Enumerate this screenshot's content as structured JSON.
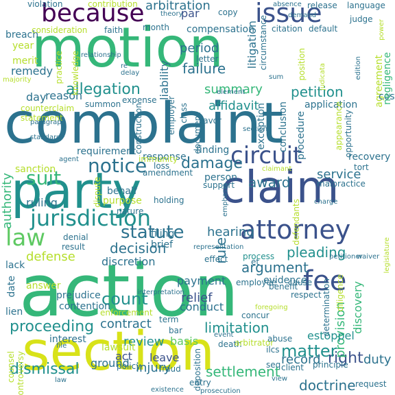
{
  "palette": {
    "dark_purple": "#440154",
    "deep_blue": "#3b528b",
    "teal": "#21908d",
    "blue_teal": "#2c728e",
    "green": "#35b779",
    "light_green": "#5ec962",
    "yellow_green": "#b5de2b",
    "yellow": "#d8e219"
  },
  "words": [
    {
      "text": "action",
      "c": "green"
    },
    {
      "text": "complaint",
      "c": "blue_teal"
    },
    {
      "text": "section",
      "c": "yellow"
    },
    {
      "text": "motion",
      "c": "green"
    },
    {
      "text": "party",
      "c": "teal"
    },
    {
      "text": "claim",
      "c": "deep_blue"
    },
    {
      "text": "because",
      "c": "dark_purple"
    },
    {
      "text": "issue",
      "c": "deep_blue"
    },
    {
      "text": "attorney",
      "c": "deep_blue"
    },
    {
      "text": "law",
      "c": "light_green"
    },
    {
      "text": "fee",
      "c": "deep_blue"
    },
    {
      "text": "circuit",
      "c": "deep_blue"
    },
    {
      "text": "jurisdiction",
      "c": "teal"
    },
    {
      "text": "notice",
      "c": "blue_teal"
    },
    {
      "text": "statute",
      "c": "blue_teal"
    },
    {
      "text": "allegation",
      "c": "teal"
    },
    {
      "text": "suit",
      "c": "green"
    },
    {
      "text": "count",
      "c": "teal"
    },
    {
      "text": "proceeding",
      "c": "teal"
    },
    {
      "text": "dismissal",
      "c": "teal"
    },
    {
      "text": "settlement",
      "c": "green"
    },
    {
      "text": "arbitration",
      "c": "blue_teal"
    },
    {
      "text": "decision",
      "c": "blue_teal"
    },
    {
      "text": "limitation",
      "c": "teal"
    },
    {
      "text": "right",
      "c": "deep_blue"
    },
    {
      "text": "matter",
      "c": "teal"
    },
    {
      "text": "doctrine",
      "c": "blue_teal"
    },
    {
      "text": "pleading",
      "c": "teal"
    },
    {
      "text": "argument",
      "c": "blue_teal"
    },
    {
      "text": "award",
      "c": "blue_teal"
    },
    {
      "text": "damage",
      "c": "blue_teal"
    },
    {
      "text": "petition",
      "c": "teal"
    },
    {
      "text": "affidavit",
      "c": "teal"
    },
    {
      "text": "summary",
      "c": "green"
    },
    {
      "text": "failure",
      "c": "blue_teal"
    },
    {
      "text": "period",
      "c": "blue_teal"
    },
    {
      "text": "rule",
      "c": "blue_teal"
    },
    {
      "text": "hearing",
      "c": "blue_teal"
    },
    {
      "text": "review",
      "c": "teal"
    },
    {
      "text": "contract",
      "c": "blue_teal"
    },
    {
      "text": "relief",
      "c": "deep_blue"
    },
    {
      "text": "duty",
      "c": "blue_teal"
    },
    {
      "text": "injury",
      "c": "blue_teal"
    },
    {
      "text": "record",
      "c": "blue_teal"
    },
    {
      "text": "provision",
      "c": "green"
    },
    {
      "text": "discovery",
      "c": "green"
    },
    {
      "text": "service",
      "c": "blue_teal"
    },
    {
      "text": "defense",
      "c": "yellow_green"
    },
    {
      "text": "ruling",
      "c": "blue_teal"
    },
    {
      "text": "reason",
      "c": "blue_teal"
    },
    {
      "text": "day",
      "c": "blue_teal"
    },
    {
      "text": "remedy",
      "c": "blue_teal"
    },
    {
      "text": "authority",
      "c": "green"
    },
    {
      "text": "payment",
      "c": "blue_teal"
    },
    {
      "text": "conduct",
      "c": "blue_teal"
    },
    {
      "text": "basis",
      "c": "light_green"
    },
    {
      "text": "act",
      "c": "deep_blue"
    },
    {
      "text": "leave",
      "c": "deep_blue"
    },
    {
      "text": "ground",
      "c": "blue_teal"
    },
    {
      "text": "estoppel",
      "c": "teal"
    },
    {
      "text": "lawsuit",
      "c": "yellow_green"
    },
    {
      "text": "discretion",
      "c": "blue_teal"
    },
    {
      "text": "decision_x",
      "c": "blue_teal"
    },
    {
      "text": "liability",
      "c": "blue_teal"
    },
    {
      "text": "litigation",
      "c": "blue_teal"
    },
    {
      "text": "agreement",
      "c": "yellow_green"
    },
    {
      "text": "compensation",
      "c": "blue_teal"
    },
    {
      "text": "year",
      "c": "yellow_green"
    },
    {
      "text": "merit",
      "c": "yellow_green"
    },
    {
      "text": "breach",
      "c": "blue_teal"
    },
    {
      "text": "sanction",
      "c": "yellow_green"
    },
    {
      "text": "person",
      "c": "blue_teal"
    },
    {
      "text": "evidence",
      "c": "blue_teal"
    },
    {
      "text": "interest",
      "c": "blue_teal"
    },
    {
      "text": "date",
      "c": "blue_teal"
    },
    {
      "text": "lack",
      "c": "blue_teal"
    },
    {
      "text": "answer",
      "c": "yellow_green"
    },
    {
      "text": "lien",
      "c": "blue_teal"
    },
    {
      "text": "prejudice",
      "c": "blue_teal"
    },
    {
      "text": "contention",
      "c": "blue_teal"
    },
    {
      "text": "exception",
      "c": "blue_teal"
    },
    {
      "text": "conclusion",
      "c": "blue_teal"
    },
    {
      "text": "procedure",
      "c": "blue_teal"
    },
    {
      "text": "application",
      "c": "blue_teal"
    },
    {
      "text": "finding",
      "c": "blue_teal"
    },
    {
      "text": "requirement",
      "c": "blue_teal"
    },
    {
      "text": "response",
      "c": "blue_teal"
    },
    {
      "text": "amendment",
      "c": "blue_teal"
    },
    {
      "text": "holding",
      "c": "blue_teal"
    },
    {
      "text": "behalf",
      "c": "blue_teal"
    },
    {
      "text": "purpose",
      "c": "yellow_green"
    },
    {
      "text": "nature",
      "c": "blue_teal"
    },
    {
      "text": "filing",
      "c": "blue_teal"
    },
    {
      "text": "brief",
      "c": "blue_teal"
    },
    {
      "text": "denial",
      "c": "blue_teal"
    },
    {
      "text": "result",
      "c": "blue_teal"
    },
    {
      "text": "cost",
      "c": "blue_teal"
    },
    {
      "text": "recovery",
      "c": "blue_teal"
    },
    {
      "text": "tort",
      "c": "blue_teal"
    },
    {
      "text": "malpractice",
      "c": "blue_teal"
    },
    {
      "text": "violation",
      "c": "blue_teal"
    },
    {
      "text": "contribution",
      "c": "yellow_green"
    },
    {
      "text": "theory",
      "c": "blue_teal"
    },
    {
      "text": "par",
      "c": "deep_blue"
    },
    {
      "text": "copy",
      "c": "blue_teal"
    },
    {
      "text": "release",
      "c": "blue_teal"
    },
    {
      "text": "language",
      "c": "blue_teal"
    },
    {
      "text": "judge",
      "c": "blue_teal"
    },
    {
      "text": "default",
      "c": "blue_teal"
    },
    {
      "text": "citation",
      "c": "blue_teal"
    },
    {
      "text": "consideration",
      "c": "yellow_green"
    },
    {
      "text": "faith",
      "c": "blue_teal"
    },
    {
      "text": "month",
      "c": "blue_teal"
    },
    {
      "text": "letter",
      "c": "blue_teal"
    },
    {
      "text": "delay",
      "c": "blue_teal"
    },
    {
      "text": "position",
      "c": "yellow_green"
    },
    {
      "text": "negligence",
      "c": "green"
    },
    {
      "text": "practice",
      "c": "yellow_green"
    },
    {
      "text": "knowledge",
      "c": "yellow_green"
    },
    {
      "text": "counterclaim",
      "c": "yellow_green"
    },
    {
      "text": "statement",
      "c": "yellow_green"
    },
    {
      "text": "expense",
      "c": "blue_teal"
    },
    {
      "text": "employer",
      "c": "blue_teal"
    },
    {
      "text": "construction",
      "c": "blue_teal"
    },
    {
      "text": "document",
      "c": "blue_teal"
    },
    {
      "text": "favor",
      "c": "blue_teal"
    },
    {
      "text": "class",
      "c": "blue_teal"
    },
    {
      "text": "opportunity",
      "c": "blue_teal"
    },
    {
      "text": "appearance",
      "c": "yellow_green"
    },
    {
      "text": "process",
      "c": "teal"
    },
    {
      "text": "support",
      "c": "blue_teal"
    },
    {
      "text": "emphasis",
      "c": "blue_teal"
    },
    {
      "text": "dispute",
      "c": "yellow_green"
    },
    {
      "text": "employee",
      "c": "blue_teal"
    },
    {
      "text": "respect",
      "c": "blue_teal"
    },
    {
      "text": "benefit",
      "c": "blue_teal"
    },
    {
      "text": "determination",
      "c": "blue_teal"
    },
    {
      "text": "request",
      "c": "blue_teal"
    },
    {
      "text": "principle",
      "c": "blue_teal"
    },
    {
      "text": "client",
      "c": "blue_teal"
    },
    {
      "text": "policy",
      "c": "blue_teal"
    },
    {
      "text": "fraud",
      "c": "blue_teal"
    },
    {
      "text": "entry",
      "c": "blue_teal"
    },
    {
      "text": "deposition",
      "c": "blue_teal"
    },
    {
      "text": "term",
      "c": "blue_teal"
    },
    {
      "text": "death",
      "c": "blue_teal"
    },
    {
      "text": "arbitrator",
      "c": "yellow_green"
    },
    {
      "text": "bar",
      "c": "blue_teal"
    },
    {
      "text": "effect",
      "c": "blue_teal"
    },
    {
      "text": "cause",
      "c": "blue_teal"
    },
    {
      "text": "abuse",
      "c": "blue_teal"
    },
    {
      "text": "counsel",
      "c": "yellow_green"
    },
    {
      "text": "controversy",
      "c": "yellow_green"
    },
    {
      "text": "enforcement",
      "c": "yellow_green"
    },
    {
      "text": "loss",
      "c": "blue_teal"
    },
    {
      "text": "immunity",
      "c": "yellow_green"
    },
    {
      "text": "defendants",
      "c": "yellow_green"
    },
    {
      "text": "summon",
      "c": "blue_teal"
    },
    {
      "text": "re",
      "c": "blue_teal"
    },
    {
      "text": "circumstance",
      "c": "blue_teal"
    },
    {
      "text": "edition",
      "c": "blue_teal"
    },
    {
      "text": "demand",
      "c": "blue_teal"
    },
    {
      "text": "absence",
      "c": "blue_teal"
    },
    {
      "text": "legislature",
      "c": "yellow_green"
    },
    {
      "text": "concur",
      "c": "blue_teal"
    },
    {
      "text": "diligence",
      "c": "yellow_green"
    },
    {
      "text": "waiver",
      "c": "blue_teal"
    },
    {
      "text": "agent",
      "c": "blue_teal"
    },
    {
      "text": "et",
      "c": "blue_teal"
    },
    {
      "text": "ilcs",
      "c": "blue_teal"
    },
    {
      "text": "seq",
      "c": "blue_teal"
    },
    {
      "text": "view",
      "c": "blue_teal"
    },
    {
      "text": "power",
      "c": "yellow_green"
    },
    {
      "text": "charge",
      "c": "blue_teal"
    },
    {
      "text": "petitioner",
      "c": "blue_teal"
    },
    {
      "text": "representation",
      "c": "blue_teal"
    },
    {
      "text": "event",
      "c": "blue_teal"
    },
    {
      "text": "prosecution",
      "c": "blue_teal"
    },
    {
      "text": "existence",
      "c": "blue_teal"
    },
    {
      "text": "relationship",
      "c": "blue_teal"
    },
    {
      "text": "majority",
      "c": "yellow_green"
    },
    {
      "text": "paragraph",
      "c": "blue_teal"
    },
    {
      "text": "standard",
      "c": "blue_teal"
    },
    {
      "text": "element",
      "c": "blue_teal"
    },
    {
      "text": "judicata",
      "c": "yellow_green"
    },
    {
      "text": "claimant",
      "c": "yellow_green"
    },
    {
      "text": "sum",
      "c": "blue_teal"
    },
    {
      "text": "file",
      "c": "blue_teal"
    },
    {
      "text": "law_small",
      "c": "blue_teal"
    },
    {
      "text": "foregoing",
      "c": "yellow_green"
    },
    {
      "text": "interpretation",
      "c": "blue_teal"
    },
    {
      "text": "section_small",
      "c": "blue_teal"
    }
  ]
}
